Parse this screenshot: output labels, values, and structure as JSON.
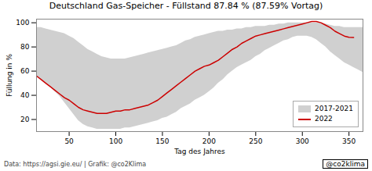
{
  "chart_data": {
    "type": "band_line",
    "title": "Deutschland Gas-Speicher - Füllstand 87.84 % (87.59% Vortag)",
    "xlabel": "Tag des Jahres",
    "ylabel": "Füllung in %",
    "annotations": [
      "Data: https://agsi.gie.eu/ | Grafik: @co2Klima",
      "@co2klima"
    ],
    "xlim": [
      15,
      365
    ],
    "ylim": [
      10,
      103
    ],
    "xticks": [
      50,
      100,
      150,
      200,
      250,
      300,
      350
    ],
    "yticks": [
      20,
      40,
      60,
      80,
      100
    ],
    "grid": false,
    "legend": "lower right",
    "series": [
      {
        "name": "2017-2021",
        "type": "band",
        "color": "#d0d0d0",
        "x": [
          15,
          20,
          25,
          30,
          35,
          40,
          45,
          50,
          55,
          60,
          65,
          70,
          75,
          80,
          85,
          90,
          95,
          100,
          105,
          110,
          115,
          120,
          125,
          130,
          135,
          140,
          145,
          150,
          155,
          160,
          165,
          170,
          175,
          180,
          185,
          190,
          195,
          200,
          205,
          210,
          215,
          220,
          225,
          230,
          235,
          240,
          245,
          250,
          255,
          260,
          265,
          270,
          275,
          280,
          285,
          290,
          295,
          300,
          305,
          310,
          315,
          320,
          325,
          330,
          335,
          340,
          345,
          350,
          355,
          360,
          365
        ],
        "upper": [
          96,
          96,
          95,
          94,
          93,
          92,
          91,
          89,
          87,
          84,
          81,
          78,
          76,
          74,
          72,
          71,
          70,
          70,
          70,
          70,
          71,
          72,
          73,
          74,
          75,
          76,
          77,
          78,
          79,
          80,
          81,
          83,
          85,
          86,
          88,
          89,
          90,
          91,
          92,
          93,
          93,
          94,
          94,
          95,
          95,
          96,
          96,
          97,
          97,
          97,
          98,
          98,
          99,
          99,
          100,
          100,
          100,
          100,
          100,
          100,
          100,
          100,
          99,
          98,
          97,
          97,
          96,
          96,
          96,
          96,
          96
        ],
        "lower": [
          56,
          53,
          50,
          47,
          43,
          39,
          34,
          29,
          24,
          19,
          16,
          14,
          13,
          12,
          12,
          12,
          12,
          12,
          12,
          13,
          13,
          14,
          15,
          16,
          17,
          18,
          19,
          21,
          22,
          24,
          26,
          29,
          31,
          33,
          36,
          38,
          40,
          43,
          46,
          50,
          53,
          57,
          60,
          63,
          65,
          67,
          69,
          72,
          74,
          77,
          79,
          81,
          83,
          85,
          86,
          88,
          89,
          89,
          89,
          88,
          86,
          83,
          80,
          76,
          73,
          70,
          67,
          65,
          63,
          61,
          59
        ]
      },
      {
        "name": "2022",
        "type": "line",
        "color": "#cc0000",
        "x": [
          15,
          20,
          25,
          30,
          35,
          40,
          45,
          50,
          55,
          60,
          65,
          70,
          75,
          80,
          85,
          90,
          95,
          100,
          105,
          110,
          115,
          120,
          125,
          130,
          135,
          140,
          145,
          150,
          155,
          160,
          165,
          170,
          175,
          180,
          185,
          190,
          195,
          200,
          205,
          210,
          215,
          220,
          225,
          230,
          235,
          240,
          245,
          250,
          255,
          260,
          265,
          270,
          275,
          280,
          285,
          290,
          295,
          300,
          305,
          310,
          315,
          320,
          325,
          330,
          335,
          340,
          345,
          350,
          355
        ],
        "values": [
          56,
          53,
          50,
          47,
          44,
          41,
          38,
          36,
          33,
          30,
          28,
          27,
          26,
          25,
          25,
          25,
          26,
          27,
          27,
          28,
          28,
          29,
          30,
          31,
          32,
          34,
          36,
          39,
          42,
          45,
          48,
          51,
          54,
          57,
          60,
          62,
          64,
          65,
          67,
          69,
          72,
          75,
          78,
          80,
          83,
          85,
          87,
          89,
          90,
          91,
          92,
          93,
          94,
          95,
          96,
          97,
          98,
          99,
          100,
          101,
          101,
          100,
          98,
          96,
          93,
          91,
          89,
          88,
          87.84
        ]
      }
    ]
  }
}
